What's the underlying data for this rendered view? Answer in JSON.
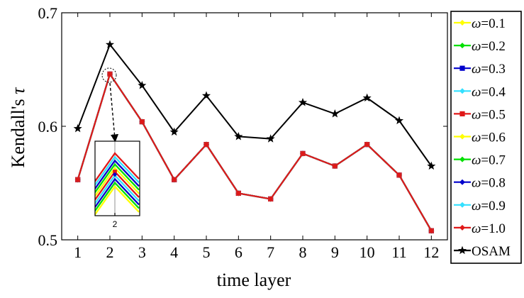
{
  "chart_data": {
    "type": "line",
    "xlabel": "time layer",
    "ylabel": "Kendall's τ",
    "ylabel_prefix": "Kendall's ",
    "ylabel_symbol": "τ",
    "x": [
      1,
      2,
      3,
      4,
      5,
      6,
      7,
      8,
      9,
      10,
      11,
      12
    ],
    "x_ticks": [
      "1",
      "2",
      "3",
      "4",
      "5",
      "6",
      "7",
      "8",
      "9",
      "10",
      "11",
      "12"
    ],
    "y_ticks": [
      "0.5",
      "0.6",
      "0.7"
    ],
    "xlim": [
      0.5,
      12.5
    ],
    "ylim": [
      0.5,
      0.7
    ],
    "grid": false,
    "legend_position": "outside-right",
    "series": [
      {
        "name": "ω=0.1",
        "symbol": "ω",
        "value_text": "=0.1",
        "color": "#ffff00",
        "marker": "diamond",
        "values": [
          0.553,
          0.646,
          0.604,
          0.553,
          0.584,
          0.541,
          0.536,
          0.576,
          0.565,
          0.584,
          0.557,
          0.508
        ]
      },
      {
        "name": "ω=0.2",
        "symbol": "ω",
        "value_text": "=0.2",
        "color": "#00e000",
        "marker": "diamond",
        "values": [
          0.553,
          0.646,
          0.604,
          0.553,
          0.584,
          0.541,
          0.536,
          0.576,
          0.565,
          0.584,
          0.557,
          0.508
        ]
      },
      {
        "name": "ω=0.3",
        "symbol": "ω",
        "value_text": "=0.3",
        "color": "#0000cc",
        "marker": "square",
        "values": [
          0.553,
          0.646,
          0.604,
          0.553,
          0.584,
          0.541,
          0.536,
          0.576,
          0.565,
          0.584,
          0.557,
          0.508
        ]
      },
      {
        "name": "ω=0.4",
        "symbol": "ω",
        "value_text": "=0.4",
        "color": "#33e0ff",
        "marker": "diamond",
        "values": [
          0.553,
          0.646,
          0.604,
          0.553,
          0.584,
          0.541,
          0.536,
          0.576,
          0.565,
          0.584,
          0.557,
          0.508
        ]
      },
      {
        "name": "ω=0.5",
        "symbol": "ω",
        "value_text": "=0.5",
        "color": "#e01818",
        "marker": "square",
        "values": [
          0.553,
          0.646,
          0.604,
          0.553,
          0.584,
          0.541,
          0.536,
          0.576,
          0.565,
          0.584,
          0.557,
          0.508
        ]
      },
      {
        "name": "ω=0.6",
        "symbol": "ω",
        "value_text": "=0.6",
        "color": "#ffff00",
        "marker": "diamond",
        "values": [
          0.553,
          0.646,
          0.604,
          0.553,
          0.584,
          0.541,
          0.536,
          0.576,
          0.565,
          0.584,
          0.557,
          0.508
        ]
      },
      {
        "name": "ω=0.7",
        "symbol": "ω",
        "value_text": "=0.7",
        "color": "#00e000",
        "marker": "diamond",
        "values": [
          0.553,
          0.646,
          0.604,
          0.553,
          0.584,
          0.541,
          0.536,
          0.576,
          0.565,
          0.584,
          0.557,
          0.508
        ]
      },
      {
        "name": "ω=0.8",
        "symbol": "ω",
        "value_text": "=0.8",
        "color": "#0000cc",
        "marker": "diamond",
        "values": [
          0.553,
          0.646,
          0.604,
          0.553,
          0.584,
          0.541,
          0.536,
          0.576,
          0.565,
          0.584,
          0.557,
          0.508
        ]
      },
      {
        "name": "ω=0.9",
        "symbol": "ω",
        "value_text": "=0.9",
        "color": "#33e0ff",
        "marker": "diamond",
        "values": [
          0.553,
          0.646,
          0.604,
          0.553,
          0.584,
          0.541,
          0.536,
          0.576,
          0.565,
          0.584,
          0.557,
          0.508
        ]
      },
      {
        "name": "ω=1.0",
        "symbol": "ω",
        "value_text": "=1.0",
        "color": "#e01818",
        "marker": "diamond",
        "values": [
          0.553,
          0.646,
          0.604,
          0.553,
          0.584,
          0.541,
          0.536,
          0.576,
          0.565,
          0.584,
          0.557,
          0.508
        ]
      },
      {
        "name": "OSAM",
        "symbol": "",
        "value_text": "OSAM",
        "color": "#000000",
        "marker": "star",
        "values": [
          0.598,
          0.672,
          0.636,
          0.595,
          0.627,
          0.591,
          0.589,
          0.621,
          0.611,
          0.625,
          0.605,
          0.565
        ]
      }
    ],
    "inset": {
      "x_tick": "2",
      "zoom_marker_colors": [
        "#e01818",
        "#0000cc"
      ]
    }
  }
}
